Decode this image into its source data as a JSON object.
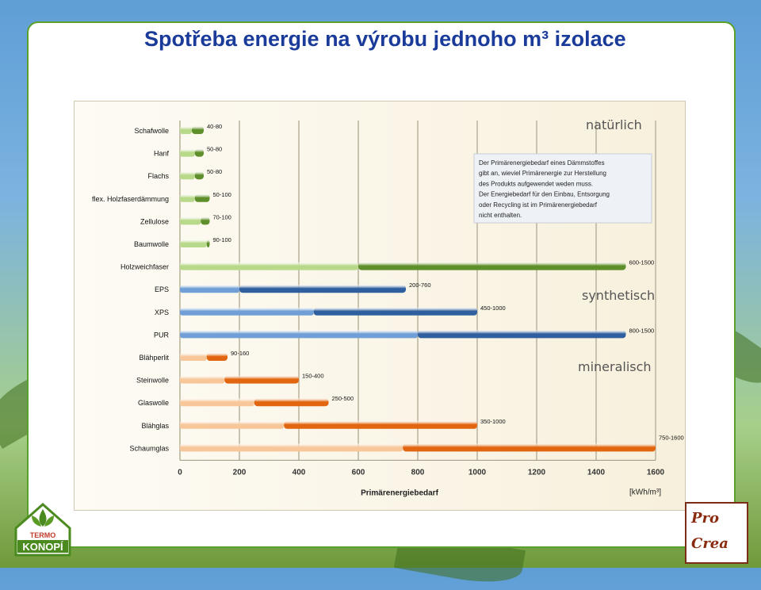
{
  "slide_title": "Spotřeba energie na výrobu jednoho m³ izolace",
  "colors": {
    "natural_dark": "#5e8f2a",
    "natural_light": "#b9d98a",
    "synthetic_dark": "#2f5f9e",
    "synthetic_light": "#6f9fd6",
    "mineral_dark": "#e2660f",
    "mineral_light": "#f7c79a"
  },
  "chart_data": {
    "type": "bar",
    "orientation": "horizontal",
    "xlabel": "Primärenergiebedarf",
    "unit": "[kWh/m³]",
    "xlim": [
      0,
      1600
    ],
    "xticks": [
      0,
      200,
      400,
      600,
      800,
      1000,
      1200,
      1400,
      1600
    ],
    "grid": true,
    "groups": [
      {
        "name": "natürlich",
        "color_key": "natural"
      },
      {
        "name": "synthetisch",
        "color_key": "synthetic"
      },
      {
        "name": "mineralisch",
        "color_key": "mineral"
      }
    ],
    "bars": [
      {
        "category": "Schafwolle",
        "min": 40,
        "max": 80,
        "label": "40-80",
        "group": 0
      },
      {
        "category": "Hanf",
        "min": 50,
        "max": 80,
        "label": "50-80",
        "group": 0
      },
      {
        "category": "Flachs",
        "min": 50,
        "max": 80,
        "label": "50-80",
        "group": 0
      },
      {
        "category": "flex. Holzfaserdämmung",
        "min": 50,
        "max": 100,
        "label": "50-100",
        "group": 0
      },
      {
        "category": "Zellulose",
        "min": 70,
        "max": 100,
        "label": "70-100",
        "group": 0
      },
      {
        "category": "Baumwolle",
        "min": 90,
        "max": 100,
        "label": "90-100",
        "group": 0
      },
      {
        "category": "Holzweichfaser",
        "min": 600,
        "max": 1500,
        "label": "600-1500",
        "group": 0
      },
      {
        "category": "EPS",
        "min": 200,
        "max": 760,
        "label": "200-760",
        "group": 1
      },
      {
        "category": "XPS",
        "min": 450,
        "max": 1000,
        "label": "450-1000",
        "group": 1
      },
      {
        "category": "PUR",
        "min": 800,
        "max": 1500,
        "label": "800-1500",
        "group": 1
      },
      {
        "category": "Blähperlit",
        "min": 90,
        "max": 160,
        "label": "90-160",
        "group": 2
      },
      {
        "category": "Steinwolle",
        "min": 150,
        "max": 400,
        "label": "150-400",
        "group": 2
      },
      {
        "category": "Glaswolle",
        "min": 250,
        "max": 500,
        "label": "250-500",
        "group": 2
      },
      {
        "category": "Blähglas",
        "min": 350,
        "max": 1000,
        "label": "350-1000",
        "group": 2
      },
      {
        "category": "Schaumglas",
        "min": 750,
        "max": 1600,
        "label": "750-1600",
        "group": 2
      }
    ],
    "note": [
      "Der Primärenergiebedarf eines Dämmstoffes",
      "gibt an, wieviel Primärenergie zur Herstellung",
      "des Produkts aufgewendet weden muss.",
      "Der Energiebedarf für den Einbau, Entsorgung",
      "oder Recycling ist im Primärenergiebedarf",
      "nicht enthalten."
    ]
  },
  "logos": {
    "left_top": "TERMO",
    "left_bottom": "KONOPÍ",
    "right_top": "Pro",
    "right_bottom": "Crea"
  }
}
